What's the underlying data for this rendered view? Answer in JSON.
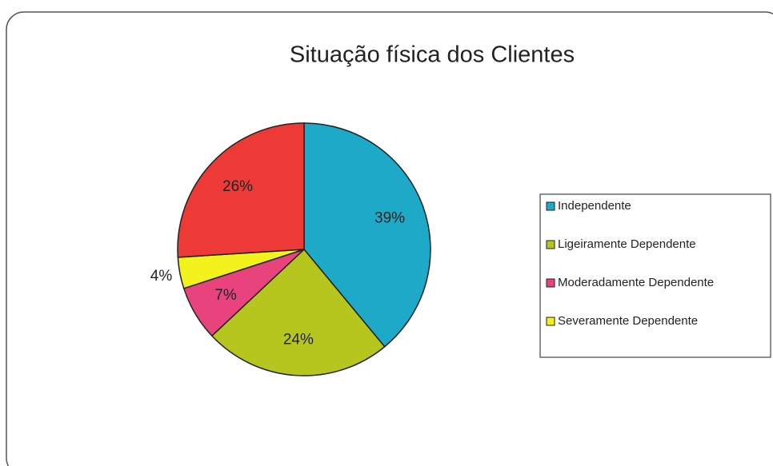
{
  "chart_data": {
    "type": "pie",
    "title": "Situação física dos Clientes",
    "categories": [
      "Independente",
      "Ligeiramente Dependente",
      "Moderadamente Dependente",
      "Severamente Dependente",
      null
    ],
    "values": [
      39,
      24,
      7,
      4,
      26
    ],
    "value_labels": [
      "39%",
      "24%",
      "7%",
      "4%",
      "26%"
    ],
    "colors": [
      "#1ea9c8",
      "#b6c61e",
      "#e8437c",
      "#f4f21c",
      "#ee3a36"
    ],
    "legend": "right"
  }
}
